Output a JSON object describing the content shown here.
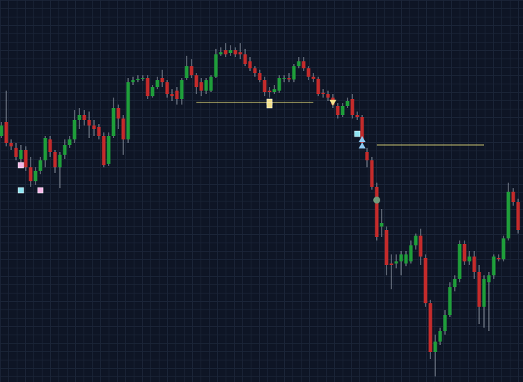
{
  "chart_data": {
    "type": "candlestick",
    "up_color": "#1f9e3a",
    "down_color": "#c42b2b",
    "ylim": [
      0,
      548
    ],
    "open": [
      353,
      373,
      343,
      336,
      320,
      333,
      308,
      288,
      303,
      318,
      348,
      330,
      308,
      326,
      340,
      348,
      376,
      383,
      376,
      368,
      366,
      353,
      313,
      353,
      393,
      378,
      348,
      430,
      433,
      435,
      436,
      410,
      423,
      436,
      430,
      413,
      418,
      406,
      436,
      453,
      440,
      430,
      418,
      418,
      438,
      470,
      476,
      472,
      476,
      473,
      470,
      460,
      450,
      443,
      433,
      418,
      416,
      418,
      436,
      436,
      434,
      453,
      460,
      450,
      438,
      435,
      415,
      413,
      408,
      396,
      383,
      396,
      406,
      383,
      380,
      330,
      318,
      280,
      223,
      218,
      170,
      170,
      173,
      170,
      173,
      196,
      210,
      178,
      113,
      43,
      58,
      73,
      96,
      136,
      148,
      198,
      173,
      180,
      158,
      108,
      143,
      153,
      178,
      176,
      206,
      273,
      258
    ],
    "high": [
      373,
      418,
      348,
      343,
      340,
      338,
      323,
      308,
      323,
      353,
      353,
      333,
      330,
      348,
      353,
      390,
      393,
      390,
      388,
      376,
      370,
      358,
      358,
      408,
      398,
      383,
      436,
      438,
      440,
      440,
      440,
      426,
      438,
      448,
      433,
      420,
      423,
      436,
      468,
      463,
      443,
      436,
      436,
      440,
      478,
      480,
      486,
      483,
      480,
      486,
      478,
      466,
      453,
      448,
      438,
      423,
      426,
      440,
      440,
      443,
      456,
      466,
      466,
      453,
      443,
      438,
      420,
      418,
      413,
      400,
      400,
      408,
      413,
      388,
      383,
      336,
      323,
      286,
      248,
      223,
      183,
      183,
      188,
      188,
      203,
      213,
      220,
      183,
      118,
      68,
      78,
      103,
      143,
      153,
      203,
      203,
      188,
      188,
      168,
      153,
      158,
      183,
      183,
      210,
      286,
      278,
      263
    ],
    "low": [
      350,
      338,
      333,
      318,
      313,
      303,
      280,
      283,
      298,
      308,
      323,
      300,
      278,
      320,
      336,
      343,
      363,
      368,
      350,
      353,
      348,
      308,
      310,
      350,
      363,
      326,
      343,
      426,
      430,
      432,
      406,
      408,
      420,
      423,
      408,
      403,
      398,
      398,
      433,
      436,
      413,
      410,
      413,
      416,
      436,
      468,
      466,
      468,
      466,
      463,
      453,
      446,
      438,
      430,
      410,
      408,
      413,
      415,
      430,
      430,
      430,
      450,
      446,
      433,
      430,
      410,
      408,
      403,
      393,
      378,
      380,
      393,
      378,
      376,
      336,
      308,
      276,
      203,
      208,
      153,
      133,
      163,
      153,
      166,
      170,
      190,
      168,
      108,
      33,
      8,
      53,
      68,
      93,
      130,
      143,
      168,
      168,
      148,
      83,
      78,
      73,
      148,
      173,
      173,
      203,
      253,
      213
    ],
    "close": [
      368,
      343,
      338,
      323,
      333,
      308,
      288,
      303,
      318,
      350,
      330,
      308,
      326,
      340,
      348,
      376,
      383,
      376,
      368,
      363,
      353,
      311,
      353,
      393,
      378,
      348,
      430,
      433,
      435,
      436,
      410,
      423,
      433,
      430,
      413,
      410,
      406,
      433,
      453,
      440,
      423,
      418,
      433,
      438,
      470,
      473,
      470,
      476,
      470,
      470,
      456,
      450,
      443,
      433,
      416,
      416,
      420,
      436,
      436,
      434,
      453,
      460,
      450,
      438,
      435,
      413,
      413,
      408,
      398,
      383,
      396,
      403,
      383,
      380,
      343,
      318,
      280,
      208,
      228,
      168,
      168,
      173,
      183,
      183,
      196,
      210,
      180,
      113,
      43,
      58,
      73,
      96,
      136,
      148,
      198,
      173,
      180,
      158,
      108,
      148,
      153,
      180,
      176,
      206,
      273,
      258,
      218
    ],
    "levels": [
      {
        "value": 401,
        "from": 40,
        "to": 64,
        "color": "#e8e07a"
      },
      {
        "value": 340,
        "from": 77,
        "to": 99,
        "color": "#e8e07a"
      }
    ],
    "markers": [
      {
        "index": 4,
        "value": 311,
        "shape": "square",
        "color": "#f4b6e6"
      },
      {
        "index": 4,
        "value": 275,
        "shape": "square",
        "color": "#8fe3f0"
      },
      {
        "index": 8,
        "value": 275,
        "shape": "square",
        "color": "#f4b6e6"
      },
      {
        "index": 55,
        "value": 402,
        "shape": "square",
        "color": "#f2df8a"
      },
      {
        "index": 55,
        "value": 397,
        "shape": "square",
        "color": "#f2df8a"
      },
      {
        "index": 68,
        "value": 401,
        "shape": "triangle-down",
        "color": "#f2df8a"
      },
      {
        "index": 73,
        "value": 356,
        "shape": "square",
        "color": "#8fe3f0"
      },
      {
        "index": 74,
        "value": 348,
        "shape": "triangle-up",
        "color": "#8fc8f0"
      },
      {
        "index": 74,
        "value": 339,
        "shape": "triangle-up",
        "color": "#8fc8f0"
      },
      {
        "index": 77,
        "value": 261,
        "shape": "circle",
        "color": "#6e9a7a"
      }
    ]
  }
}
